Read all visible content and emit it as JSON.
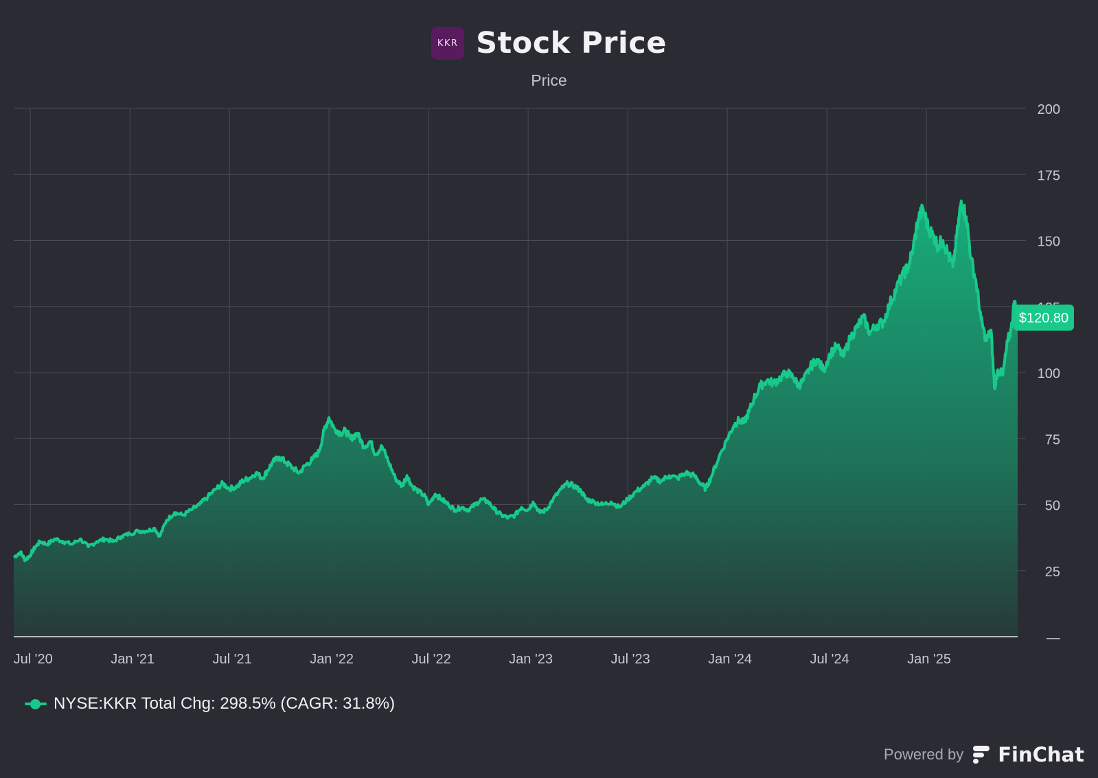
{
  "header": {
    "logo_text": "KKR",
    "title": "Stock Price",
    "subtitle": "Price"
  },
  "colors": {
    "background": "#2a2b33",
    "line": "#18c98a",
    "grid": "#4a4b55",
    "logo_bg": "#5a1b5e"
  },
  "chart_data": {
    "type": "area",
    "title": "Stock Price",
    "subtitle": "Price",
    "series_name": "NYSE:KKR",
    "ylim": [
      0,
      200
    ],
    "y_ticks": [
      200,
      175,
      150,
      125,
      100,
      75,
      50,
      25
    ],
    "y_bottom_label": "—",
    "x_ticks": [
      "Jul '20",
      "Jan '21",
      "Jul '21",
      "Jan '22",
      "Jul '22",
      "Jan '23",
      "Jul '23",
      "Jan '24",
      "Jul '24",
      "Jan '25"
    ],
    "x_tick_months": [
      0,
      6,
      12,
      18,
      24,
      30,
      36,
      42,
      48,
      54
    ],
    "x_range_months": [
      -1,
      59.5
    ],
    "grid": true,
    "last_value_label": "$120.80",
    "points": [
      {
        "m": -1,
        "v": 30
      },
      {
        "m": -0.6,
        "v": 32
      },
      {
        "m": -0.3,
        "v": 29
      },
      {
        "m": 0,
        "v": 31
      },
      {
        "m": 0.3,
        "v": 34
      },
      {
        "m": 0.6,
        "v": 36
      },
      {
        "m": 1,
        "v": 35
      },
      {
        "m": 1.5,
        "v": 37
      },
      {
        "m": 2,
        "v": 36
      },
      {
        "m": 2.5,
        "v": 35
      },
      {
        "m": 3,
        "v": 37
      },
      {
        "m": 3.5,
        "v": 34
      },
      {
        "m": 4,
        "v": 36
      },
      {
        "m": 4.5,
        "v": 37
      },
      {
        "m": 5,
        "v": 36
      },
      {
        "m": 5.5,
        "v": 38
      },
      {
        "m": 6,
        "v": 39
      },
      {
        "m": 6.5,
        "v": 40
      },
      {
        "m": 7,
        "v": 40
      },
      {
        "m": 7.5,
        "v": 41
      },
      {
        "m": 7.8,
        "v": 38
      },
      {
        "m": 8.2,
        "v": 44
      },
      {
        "m": 8.7,
        "v": 47
      },
      {
        "m": 9.2,
        "v": 46
      },
      {
        "m": 9.7,
        "v": 48
      },
      {
        "m": 10.2,
        "v": 50
      },
      {
        "m": 10.7,
        "v": 53
      },
      {
        "m": 11.2,
        "v": 56
      },
      {
        "m": 11.6,
        "v": 58
      },
      {
        "m": 12,
        "v": 56
      },
      {
        "m": 12.5,
        "v": 57
      },
      {
        "m": 12.8,
        "v": 59
      },
      {
        "m": 13.2,
        "v": 60
      },
      {
        "m": 13.6,
        "v": 62
      },
      {
        "m": 14,
        "v": 60
      },
      {
        "m": 14.3,
        "v": 63
      },
      {
        "m": 14.6,
        "v": 66
      },
      {
        "m": 15,
        "v": 68
      },
      {
        "m": 15.4,
        "v": 66
      },
      {
        "m": 15.8,
        "v": 64
      },
      {
        "m": 16.2,
        "v": 62
      },
      {
        "m": 16.6,
        "v": 65
      },
      {
        "m": 17,
        "v": 67
      },
      {
        "m": 17.4,
        "v": 70
      },
      {
        "m": 17.7,
        "v": 78
      },
      {
        "m": 18,
        "v": 83
      },
      {
        "m": 18.3,
        "v": 79
      },
      {
        "m": 18.7,
        "v": 77
      },
      {
        "m": 19,
        "v": 78
      },
      {
        "m": 19.3,
        "v": 75
      },
      {
        "m": 19.7,
        "v": 77
      },
      {
        "m": 20.1,
        "v": 72
      },
      {
        "m": 20.5,
        "v": 74
      },
      {
        "m": 20.8,
        "v": 69
      },
      {
        "m": 21.2,
        "v": 72
      },
      {
        "m": 21.6,
        "v": 66
      },
      {
        "m": 22,
        "v": 60
      },
      {
        "m": 22.4,
        "v": 57
      },
      {
        "m": 22.7,
        "v": 61
      },
      {
        "m": 23,
        "v": 57
      },
      {
        "m": 23.4,
        "v": 55
      },
      {
        "m": 23.8,
        "v": 53
      },
      {
        "m": 24,
        "v": 50
      },
      {
        "m": 24.4,
        "v": 54
      },
      {
        "m": 24.8,
        "v": 52
      },
      {
        "m": 25.2,
        "v": 50
      },
      {
        "m": 25.6,
        "v": 48
      },
      {
        "m": 26,
        "v": 49
      },
      {
        "m": 26.4,
        "v": 48
      },
      {
        "m": 26.8,
        "v": 50
      },
      {
        "m": 27.2,
        "v": 52
      },
      {
        "m": 27.6,
        "v": 51
      },
      {
        "m": 28,
        "v": 48
      },
      {
        "m": 28.4,
        "v": 46
      },
      {
        "m": 28.8,
        "v": 45
      },
      {
        "m": 29.2,
        "v": 46
      },
      {
        "m": 29.6,
        "v": 49
      },
      {
        "m": 30,
        "v": 48
      },
      {
        "m": 30.3,
        "v": 51
      },
      {
        "m": 30.7,
        "v": 47
      },
      {
        "m": 31.1,
        "v": 48
      },
      {
        "m": 31.5,
        "v": 52
      },
      {
        "m": 32,
        "v": 56
      },
      {
        "m": 32.4,
        "v": 58
      },
      {
        "m": 32.8,
        "v": 57
      },
      {
        "m": 33.2,
        "v": 55
      },
      {
        "m": 33.5,
        "v": 52
      },
      {
        "m": 34,
        "v": 51
      },
      {
        "m": 34.5,
        "v": 50
      },
      {
        "m": 35,
        "v": 51
      },
      {
        "m": 35.5,
        "v": 49
      },
      {
        "m": 36,
        "v": 52
      },
      {
        "m": 36.5,
        "v": 55
      },
      {
        "m": 37,
        "v": 57
      },
      {
        "m": 37.5,
        "v": 60
      },
      {
        "m": 38,
        "v": 59
      },
      {
        "m": 38.5,
        "v": 61
      },
      {
        "m": 39,
        "v": 60
      },
      {
        "m": 39.5,
        "v": 62
      },
      {
        "m": 40,
        "v": 61
      },
      {
        "m": 40.4,
        "v": 58
      },
      {
        "m": 40.7,
        "v": 56
      },
      {
        "m": 41,
        "v": 60
      },
      {
        "m": 41.5,
        "v": 68
      },
      {
        "m": 42,
        "v": 75
      },
      {
        "m": 42.4,
        "v": 80
      },
      {
        "m": 42.7,
        "v": 82
      },
      {
        "m": 43,
        "v": 81
      },
      {
        "m": 43.3,
        "v": 85
      },
      {
        "m": 43.6,
        "v": 90
      },
      {
        "m": 44,
        "v": 95
      },
      {
        "m": 44.4,
        "v": 97
      },
      {
        "m": 44.8,
        "v": 96
      },
      {
        "m": 45.2,
        "v": 98
      },
      {
        "m": 45.6,
        "v": 100
      },
      {
        "m": 46,
        "v": 98
      },
      {
        "m": 46.3,
        "v": 95
      },
      {
        "m": 46.6,
        "v": 97
      },
      {
        "m": 47,
        "v": 102
      },
      {
        "m": 47.4,
        "v": 105
      },
      {
        "m": 47.8,
        "v": 101
      },
      {
        "m": 48.2,
        "v": 107
      },
      {
        "m": 48.6,
        "v": 110
      },
      {
        "m": 49,
        "v": 106
      },
      {
        "m": 49.4,
        "v": 113
      },
      {
        "m": 49.8,
        "v": 117
      },
      {
        "m": 50.2,
        "v": 121
      },
      {
        "m": 50.6,
        "v": 115
      },
      {
        "m": 51,
        "v": 118
      },
      {
        "m": 51.4,
        "v": 119
      },
      {
        "m": 51.8,
        "v": 126
      },
      {
        "m": 52.2,
        "v": 132
      },
      {
        "m": 52.6,
        "v": 137
      },
      {
        "m": 52.9,
        "v": 140
      },
      {
        "m": 53.2,
        "v": 147
      },
      {
        "m": 53.5,
        "v": 158
      },
      {
        "m": 53.8,
        "v": 162
      },
      {
        "m": 54.1,
        "v": 155
      },
      {
        "m": 54.4,
        "v": 152
      },
      {
        "m": 54.7,
        "v": 148
      },
      {
        "m": 55,
        "v": 150
      },
      {
        "m": 55.3,
        "v": 145
      },
      {
        "m": 55.6,
        "v": 140
      },
      {
        "m": 55.9,
        "v": 155
      },
      {
        "m": 56.1,
        "v": 165
      },
      {
        "m": 56.4,
        "v": 159
      },
      {
        "m": 56.7,
        "v": 143
      },
      {
        "m": 57,
        "v": 134
      },
      {
        "m": 57.3,
        "v": 120
      },
      {
        "m": 57.6,
        "v": 112
      },
      {
        "m": 57.9,
        "v": 116
      },
      {
        "m": 58.1,
        "v": 94
      },
      {
        "m": 58.3,
        "v": 101
      },
      {
        "m": 58.6,
        "v": 99
      },
      {
        "m": 58.9,
        "v": 112
      },
      {
        "m": 59.1,
        "v": 116
      },
      {
        "m": 59.3,
        "v": 127
      },
      {
        "m": 59.5,
        "v": 120.8
      }
    ]
  },
  "legend": {
    "text": "NYSE:KKR Total Chg: 298.5% (CAGR: 31.8%)"
  },
  "footer": {
    "powered_by": "Powered by",
    "brand": "FinChat"
  }
}
